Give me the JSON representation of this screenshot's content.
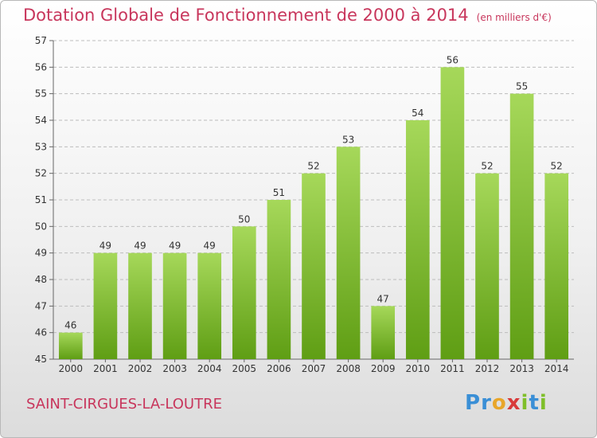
{
  "header": {
    "title": "Dotation Globale de Fonctionnement de 2000 à 2014",
    "unit": "(en milliers d'€)"
  },
  "footer": {
    "commune": "SAINT-CIRGUES-LA-LOUTRE",
    "logo": {
      "letters": [
        "P",
        "r",
        "o",
        "x",
        "i",
        "t",
        "i"
      ],
      "colors": [
        "#3a8fd6",
        "#3a8fd6",
        "#e8a62a",
        "#d83a3a",
        "#7fbf2a",
        "#3a8fd6",
        "#7fbf2a"
      ]
    }
  },
  "colors": {
    "bar_top": "#a6d85a",
    "bar_bottom": "#5f9e14",
    "title": "#c8365c",
    "grid": "#bdbdbd"
  },
  "chart_data": {
    "type": "bar",
    "categories": [
      "2000",
      "2001",
      "2002",
      "2003",
      "2004",
      "2005",
      "2006",
      "2007",
      "2008",
      "2009",
      "2010",
      "2011",
      "2012",
      "2013",
      "2014"
    ],
    "values": [
      46,
      49,
      49,
      49,
      49,
      50,
      51,
      52,
      53,
      47,
      54,
      56,
      52,
      55,
      52
    ],
    "yticks": [
      45,
      46,
      47,
      48,
      49,
      50,
      51,
      52,
      53,
      54,
      55,
      56,
      57
    ],
    "ylim": [
      45,
      57
    ],
    "grid": true,
    "legend": "none"
  }
}
